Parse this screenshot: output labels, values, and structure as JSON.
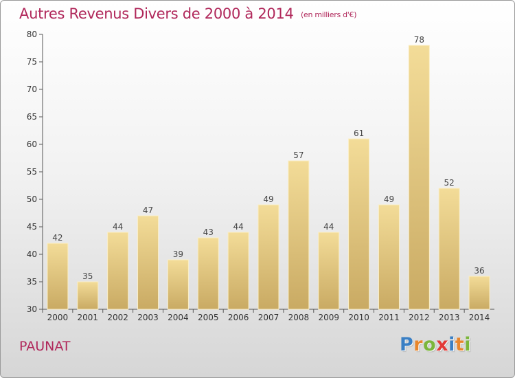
{
  "header": {
    "title": "Autres Revenus Divers de 2000 à 2014",
    "unit": "(en milliers d'€)"
  },
  "footer": {
    "town": "PAUNAT",
    "logo_text": "Proxiti"
  },
  "colors": {
    "title": "#b0275a",
    "bar_top": "#f3dc98",
    "bar_bottom": "#c9aa63",
    "logo_letters": [
      "#3a7fc4",
      "#e8862c",
      "#7bb63a",
      "#e23a36",
      "#3a7fc4",
      "#e8862c",
      "#7bb63a"
    ]
  },
  "chart_data": {
    "type": "bar",
    "title": "Autres Revenus Divers de 2000 à 2014",
    "subtitle": "(en milliers d'€)",
    "xlabel": "",
    "ylabel": "",
    "categories": [
      "2000",
      "2001",
      "2002",
      "2003",
      "2004",
      "2005",
      "2006",
      "2007",
      "2008",
      "2009",
      "2010",
      "2011",
      "2012",
      "2013",
      "2014"
    ],
    "values": [
      42,
      35,
      44,
      47,
      39,
      43,
      44,
      49,
      57,
      44,
      61,
      49,
      78,
      52,
      36
    ],
    "ylim": [
      30,
      80
    ],
    "yticks": [
      30,
      35,
      40,
      45,
      50,
      55,
      60,
      65,
      70,
      75,
      80
    ],
    "grid": false,
    "legend": "none"
  }
}
